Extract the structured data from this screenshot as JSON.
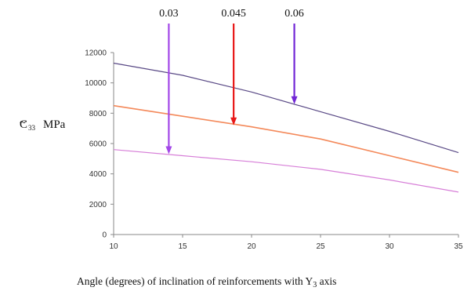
{
  "chart_data": {
    "type": "line",
    "xlabel": {
      "prefix": "Angle (degrees) of inclination of reinforcements with Y",
      "subscript": "3",
      "suffix": " axis"
    },
    "ylabel": {
      "symbol": "C",
      "tilde": "~",
      "subscript": "33",
      "unit": "MPa"
    },
    "xlim": [
      10,
      35
    ],
    "ylim": [
      0,
      12000
    ],
    "xticks": [
      "10",
      "15",
      "20",
      "25",
      "30",
      "35"
    ],
    "yticks": [
      "0",
      "2000",
      "4000",
      "6000",
      "8000",
      "10000",
      "12000"
    ],
    "grid": false,
    "legend": "none",
    "series": [
      {
        "color": "#5a4a86",
        "x": [
          10,
          15,
          20,
          25,
          30,
          35
        ],
        "y": [
          11300,
          10500,
          9400,
          8100,
          6800,
          5400
        ]
      },
      {
        "color": "#f4895a",
        "x": [
          10,
          15,
          20,
          25,
          30,
          35
        ],
        "y": [
          8500,
          7800,
          7100,
          6300,
          5200,
          4100
        ]
      },
      {
        "color": "#d77fd8",
        "x": [
          10,
          15,
          20,
          25,
          30,
          35
        ],
        "y": [
          5600,
          5200,
          4800,
          4300,
          3600,
          2800
        ]
      }
    ],
    "annotations": [
      {
        "text": "0.03",
        "color": "#a347e8",
        "x": 14,
        "y": 5300
      },
      {
        "text": "0.045",
        "color": "#e81818",
        "x": 18.7,
        "y": 7200
      },
      {
        "text": "0.06",
        "color": "#7126d6",
        "x": 23.1,
        "y": 8600
      }
    ]
  }
}
